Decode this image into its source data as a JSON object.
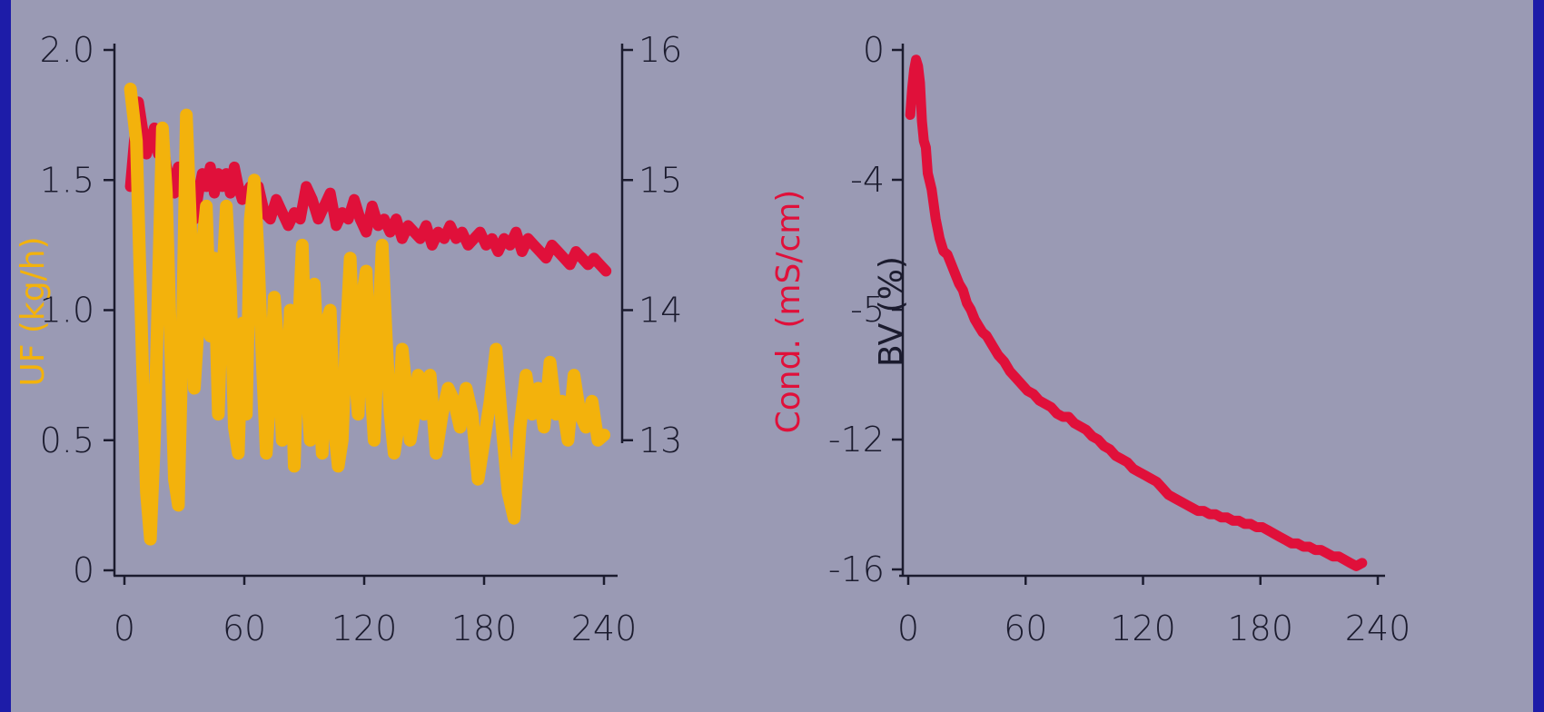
{
  "colors": {
    "page_border": "#1d1ca8",
    "plot_background": "#9a9ab4",
    "uf_series": "#f3b20c",
    "cond_series": "#e0103a",
    "bv_series": "#e0103a",
    "axis": "#1b1b2e"
  },
  "chart_data": [
    {
      "type": "line",
      "title": "",
      "xlabel": "",
      "xlim": [
        0,
        240
      ],
      "x_ticks": [
        "0",
        "60",
        "120",
        "180",
        "240"
      ],
      "ylabel": "UF (kg/h)",
      "ylim": [
        0,
        2.0
      ],
      "y_ticks": [
        "0",
        "0.5",
        "1.0",
        "1.5",
        "2.0"
      ],
      "y2label": "Cond. (mS/cm)",
      "y2lim": [
        12,
        16
      ],
      "y2_ticks": [
        "13",
        "14",
        "15",
        "16"
      ],
      "grid": false,
      "legend": "none",
      "series": [
        {
          "axis": "left",
          "color": "#f3b20c",
          "x": [
            3,
            6,
            9,
            11,
            13,
            15,
            17,
            19,
            21,
            23,
            25,
            27,
            29,
            31,
            33,
            35,
            37,
            39,
            41,
            43,
            45,
            47,
            49,
            51,
            53,
            55,
            57,
            59,
            61,
            63,
            65,
            67,
            69,
            71,
            73,
            75,
            77,
            79,
            81,
            83,
            85,
            87,
            89,
            91,
            93,
            95,
            97,
            99,
            101,
            103,
            105,
            107,
            109,
            111,
            113,
            115,
            117,
            119,
            121,
            123,
            125,
            127,
            129,
            131,
            133,
            135,
            137,
            139,
            141,
            143,
            145,
            147,
            150,
            153,
            156,
            159,
            162,
            165,
            168,
            171,
            174,
            177,
            180,
            183,
            186,
            189,
            192,
            195,
            198,
            201,
            204,
            207,
            210,
            213,
            216,
            219,
            222,
            225,
            228,
            231,
            234,
            237,
            240
          ],
          "values": [
            1.85,
            1.65,
            0.8,
            0.3,
            0.12,
            0.5,
            1.1,
            1.7,
            1.45,
            0.9,
            0.35,
            0.25,
            0.9,
            1.75,
            1.35,
            0.7,
            0.95,
            1.25,
            1.4,
            0.9,
            1.2,
            0.6,
            1.1,
            1.4,
            1.1,
            0.55,
            0.45,
            0.95,
            0.6,
            1.35,
            1.5,
            1.2,
            0.8,
            0.45,
            0.7,
            1.05,
            0.85,
            0.5,
            0.55,
            1.0,
            0.4,
            0.9,
            1.25,
            0.75,
            0.5,
            1.1,
            0.8,
            0.45,
            0.95,
            1.0,
            0.55,
            0.4,
            0.5,
            0.9,
            1.2,
            0.8,
            0.6,
            1.05,
            1.15,
            0.75,
            0.5,
            0.9,
            1.25,
            0.9,
            0.6,
            0.45,
            0.55,
            0.85,
            0.7,
            0.5,
            0.6,
            0.75,
            0.6,
            0.75,
            0.45,
            0.6,
            0.7,
            0.65,
            0.55,
            0.7,
            0.6,
            0.35,
            0.5,
            0.65,
            0.85,
            0.55,
            0.3,
            0.2,
            0.55,
            0.75,
            0.6,
            0.7,
            0.55,
            0.8,
            0.6,
            0.65,
            0.5,
            0.75,
            0.6,
            0.55,
            0.65,
            0.5,
            0.52
          ]
        },
        {
          "axis": "right",
          "color": "#e0103a",
          "x": [
            3,
            5,
            7,
            9,
            11,
            13,
            15,
            17,
            19,
            21,
            23,
            25,
            27,
            29,
            31,
            33,
            35,
            37,
            39,
            41,
            43,
            45,
            47,
            49,
            51,
            53,
            55,
            57,
            59,
            61,
            63,
            65,
            67,
            70,
            73,
            76,
            79,
            82,
            85,
            88,
            91,
            94,
            97,
            100,
            103,
            106,
            109,
            112,
            115,
            118,
            121,
            124,
            127,
            130,
            133,
            136,
            139,
            142,
            145,
            148,
            151,
            154,
            157,
            160,
            163,
            166,
            169,
            172,
            175,
            178,
            181,
            184,
            187,
            190,
            193,
            196,
            199,
            202,
            205,
            208,
            211,
            214,
            217,
            220,
            223,
            226,
            229,
            232,
            235,
            238,
            241
          ],
          "values": [
            14.95,
            15.3,
            15.6,
            15.4,
            15.2,
            15.3,
            15.4,
            15.2,
            15.3,
            15.1,
            15.0,
            14.9,
            15.1,
            14.95,
            15.0,
            14.85,
            14.7,
            14.9,
            15.05,
            14.95,
            15.1,
            14.9,
            15.05,
            14.95,
            15.05,
            14.9,
            15.1,
            14.95,
            14.85,
            14.9,
            14.95,
            14.8,
            14.95,
            14.75,
            14.7,
            14.85,
            14.75,
            14.65,
            14.75,
            14.7,
            14.95,
            14.85,
            14.7,
            14.8,
            14.9,
            14.65,
            14.75,
            14.7,
            14.85,
            14.7,
            14.6,
            14.8,
            14.65,
            14.7,
            14.6,
            14.7,
            14.55,
            14.65,
            14.6,
            14.55,
            14.65,
            14.5,
            14.6,
            14.55,
            14.65,
            14.55,
            14.6,
            14.5,
            14.55,
            14.6,
            14.5,
            14.55,
            14.45,
            14.55,
            14.5,
            14.6,
            14.45,
            14.55,
            14.5,
            14.45,
            14.4,
            14.5,
            14.45,
            14.4,
            14.35,
            14.45,
            14.4,
            14.35,
            14.4,
            14.35,
            14.3
          ]
        }
      ]
    },
    {
      "type": "line",
      "title": "",
      "xlabel": "",
      "xlim": [
        0,
        240
      ],
      "x_ticks": [
        "0",
        "60",
        "120",
        "180",
        "240"
      ],
      "ylabel": "BV (%)",
      "ylim": [
        -16,
        0
      ],
      "y_ticks": [
        "0",
        "-4",
        "-5",
        "-12",
        "-16"
      ],
      "grid": false,
      "legend": "none",
      "series": [
        {
          "axis": "left",
          "color": "#e0103a",
          "x": [
            1,
            2,
            3,
            4,
            5,
            6,
            7,
            8,
            9,
            10,
            12,
            14,
            16,
            18,
            20,
            22,
            24,
            26,
            28,
            30,
            32,
            34,
            36,
            38,
            40,
            43,
            46,
            49,
            52,
            55,
            58,
            61,
            64,
            67,
            70,
            73,
            76,
            79,
            82,
            85,
            88,
            91,
            94,
            97,
            100,
            103,
            106,
            109,
            112,
            115,
            118,
            121,
            124,
            127,
            130,
            133,
            136,
            139,
            142,
            145,
            148,
            151,
            154,
            157,
            160,
            163,
            166,
            169,
            172,
            175,
            178,
            181,
            184,
            187,
            190,
            193,
            196,
            199,
            202,
            205,
            208,
            211,
            214,
            217,
            220,
            223,
            226,
            229,
            232
          ],
          "values": [
            -2.0,
            -1.2,
            -0.6,
            -0.3,
            -0.5,
            -1.0,
            -2.2,
            -2.8,
            -3.0,
            -3.8,
            -4.3,
            -5.2,
            -5.8,
            -6.2,
            -6.3,
            -6.6,
            -6.9,
            -7.2,
            -7.4,
            -7.8,
            -8.0,
            -8.3,
            -8.5,
            -8.7,
            -8.8,
            -9.1,
            -9.4,
            -9.6,
            -9.9,
            -10.1,
            -10.3,
            -10.5,
            -10.6,
            -10.8,
            -10.9,
            -11.0,
            -11.2,
            -11.3,
            -11.3,
            -11.5,
            -11.6,
            -11.7,
            -11.9,
            -12.0,
            -12.2,
            -12.3,
            -12.5,
            -12.6,
            -12.7,
            -12.9,
            -13.0,
            -13.1,
            -13.2,
            -13.3,
            -13.5,
            -13.7,
            -13.8,
            -13.9,
            -14.0,
            -14.1,
            -14.2,
            -14.2,
            -14.3,
            -14.3,
            -14.4,
            -14.4,
            -14.5,
            -14.5,
            -14.6,
            -14.6,
            -14.7,
            -14.7,
            -14.8,
            -14.9,
            -15.0,
            -15.1,
            -15.2,
            -15.2,
            -15.3,
            -15.3,
            -15.4,
            -15.4,
            -15.5,
            -15.6,
            -15.6,
            -15.7,
            -15.8,
            -15.9,
            -15.8
          ]
        }
      ]
    }
  ]
}
